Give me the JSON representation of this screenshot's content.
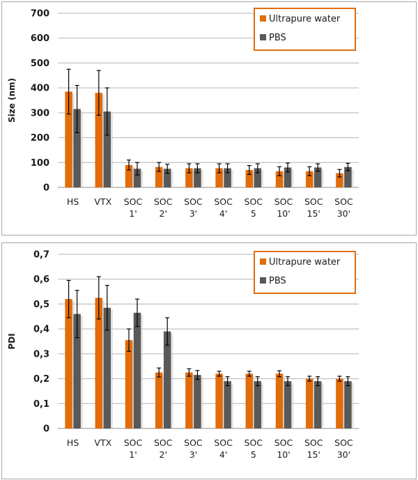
{
  "colors": {
    "water": "#e36c0a",
    "pbs": "#595959",
    "grid": "#b3b3b3",
    "legend_border": "#e36c0a"
  },
  "chart_data": [
    {
      "type": "bar",
      "ylabel": "Size (nm)",
      "ylim": [
        0,
        700
      ],
      "yticks": [
        "0",
        "100",
        "200",
        "300",
        "400",
        "500",
        "600",
        "700"
      ],
      "ytick_values": [
        0,
        100,
        200,
        300,
        400,
        500,
        600,
        700
      ],
      "legend_position": "top-right",
      "categories": [
        [
          "HS"
        ],
        [
          "VTX"
        ],
        [
          "SOC",
          "1'"
        ],
        [
          "SOC",
          "2'"
        ],
        [
          "SOC",
          "3'"
        ],
        [
          "SOC",
          "4'"
        ],
        [
          "SOC",
          "5"
        ],
        [
          "SOC",
          "10'"
        ],
        [
          "SOC",
          "15'"
        ],
        [
          "SOC",
          "30'"
        ]
      ],
      "series": [
        {
          "name": "Ultrapure water",
          "values": [
            385,
            380,
            90,
            82,
            77,
            77,
            70,
            65,
            65,
            57
          ],
          "errors": [
            90,
            90,
            20,
            18,
            18,
            18,
            18,
            18,
            18,
            15
          ]
        },
        {
          "name": "PBS",
          "values": [
            315,
            305,
            75,
            75,
            77,
            77,
            77,
            80,
            80,
            82
          ],
          "errors": [
            95,
            95,
            25,
            18,
            18,
            18,
            18,
            18,
            15,
            15
          ]
        }
      ]
    },
    {
      "type": "bar",
      "ylabel": "PDI",
      "ylim": [
        0,
        0.7
      ],
      "yticks": [
        "0",
        "0,1",
        "0,2",
        "0,3",
        "0,4",
        "0,5",
        "0,6",
        "0,7"
      ],
      "ytick_values": [
        0,
        0.1,
        0.2,
        0.3,
        0.4,
        0.5,
        0.6,
        0.7
      ],
      "legend_position": "top-right",
      "categories": [
        [
          "HS"
        ],
        [
          "VTX"
        ],
        [
          "SOC",
          "1'"
        ],
        [
          "SOC",
          "2'"
        ],
        [
          "SOC",
          "3'"
        ],
        [
          "SOC",
          "4'"
        ],
        [
          "SOC",
          "5"
        ],
        [
          "SOC",
          "10'"
        ],
        [
          "SOC",
          "15'"
        ],
        [
          "SOC",
          "30'"
        ]
      ],
      "series": [
        {
          "name": "Ultrapure water",
          "values": [
            0.52,
            0.525,
            0.355,
            0.225,
            0.225,
            0.22,
            0.22,
            0.22,
            0.2,
            0.2
          ],
          "errors": [
            0.075,
            0.085,
            0.045,
            0.018,
            0.015,
            0.01,
            0.01,
            0.012,
            0.01,
            0.01
          ]
        },
        {
          "name": "PBS",
          "values": [
            0.46,
            0.485,
            0.465,
            0.39,
            0.215,
            0.19,
            0.19,
            0.19,
            0.19,
            0.19
          ],
          "errors": [
            0.095,
            0.09,
            0.055,
            0.055,
            0.018,
            0.018,
            0.018,
            0.018,
            0.018,
            0.018
          ]
        }
      ]
    }
  ]
}
